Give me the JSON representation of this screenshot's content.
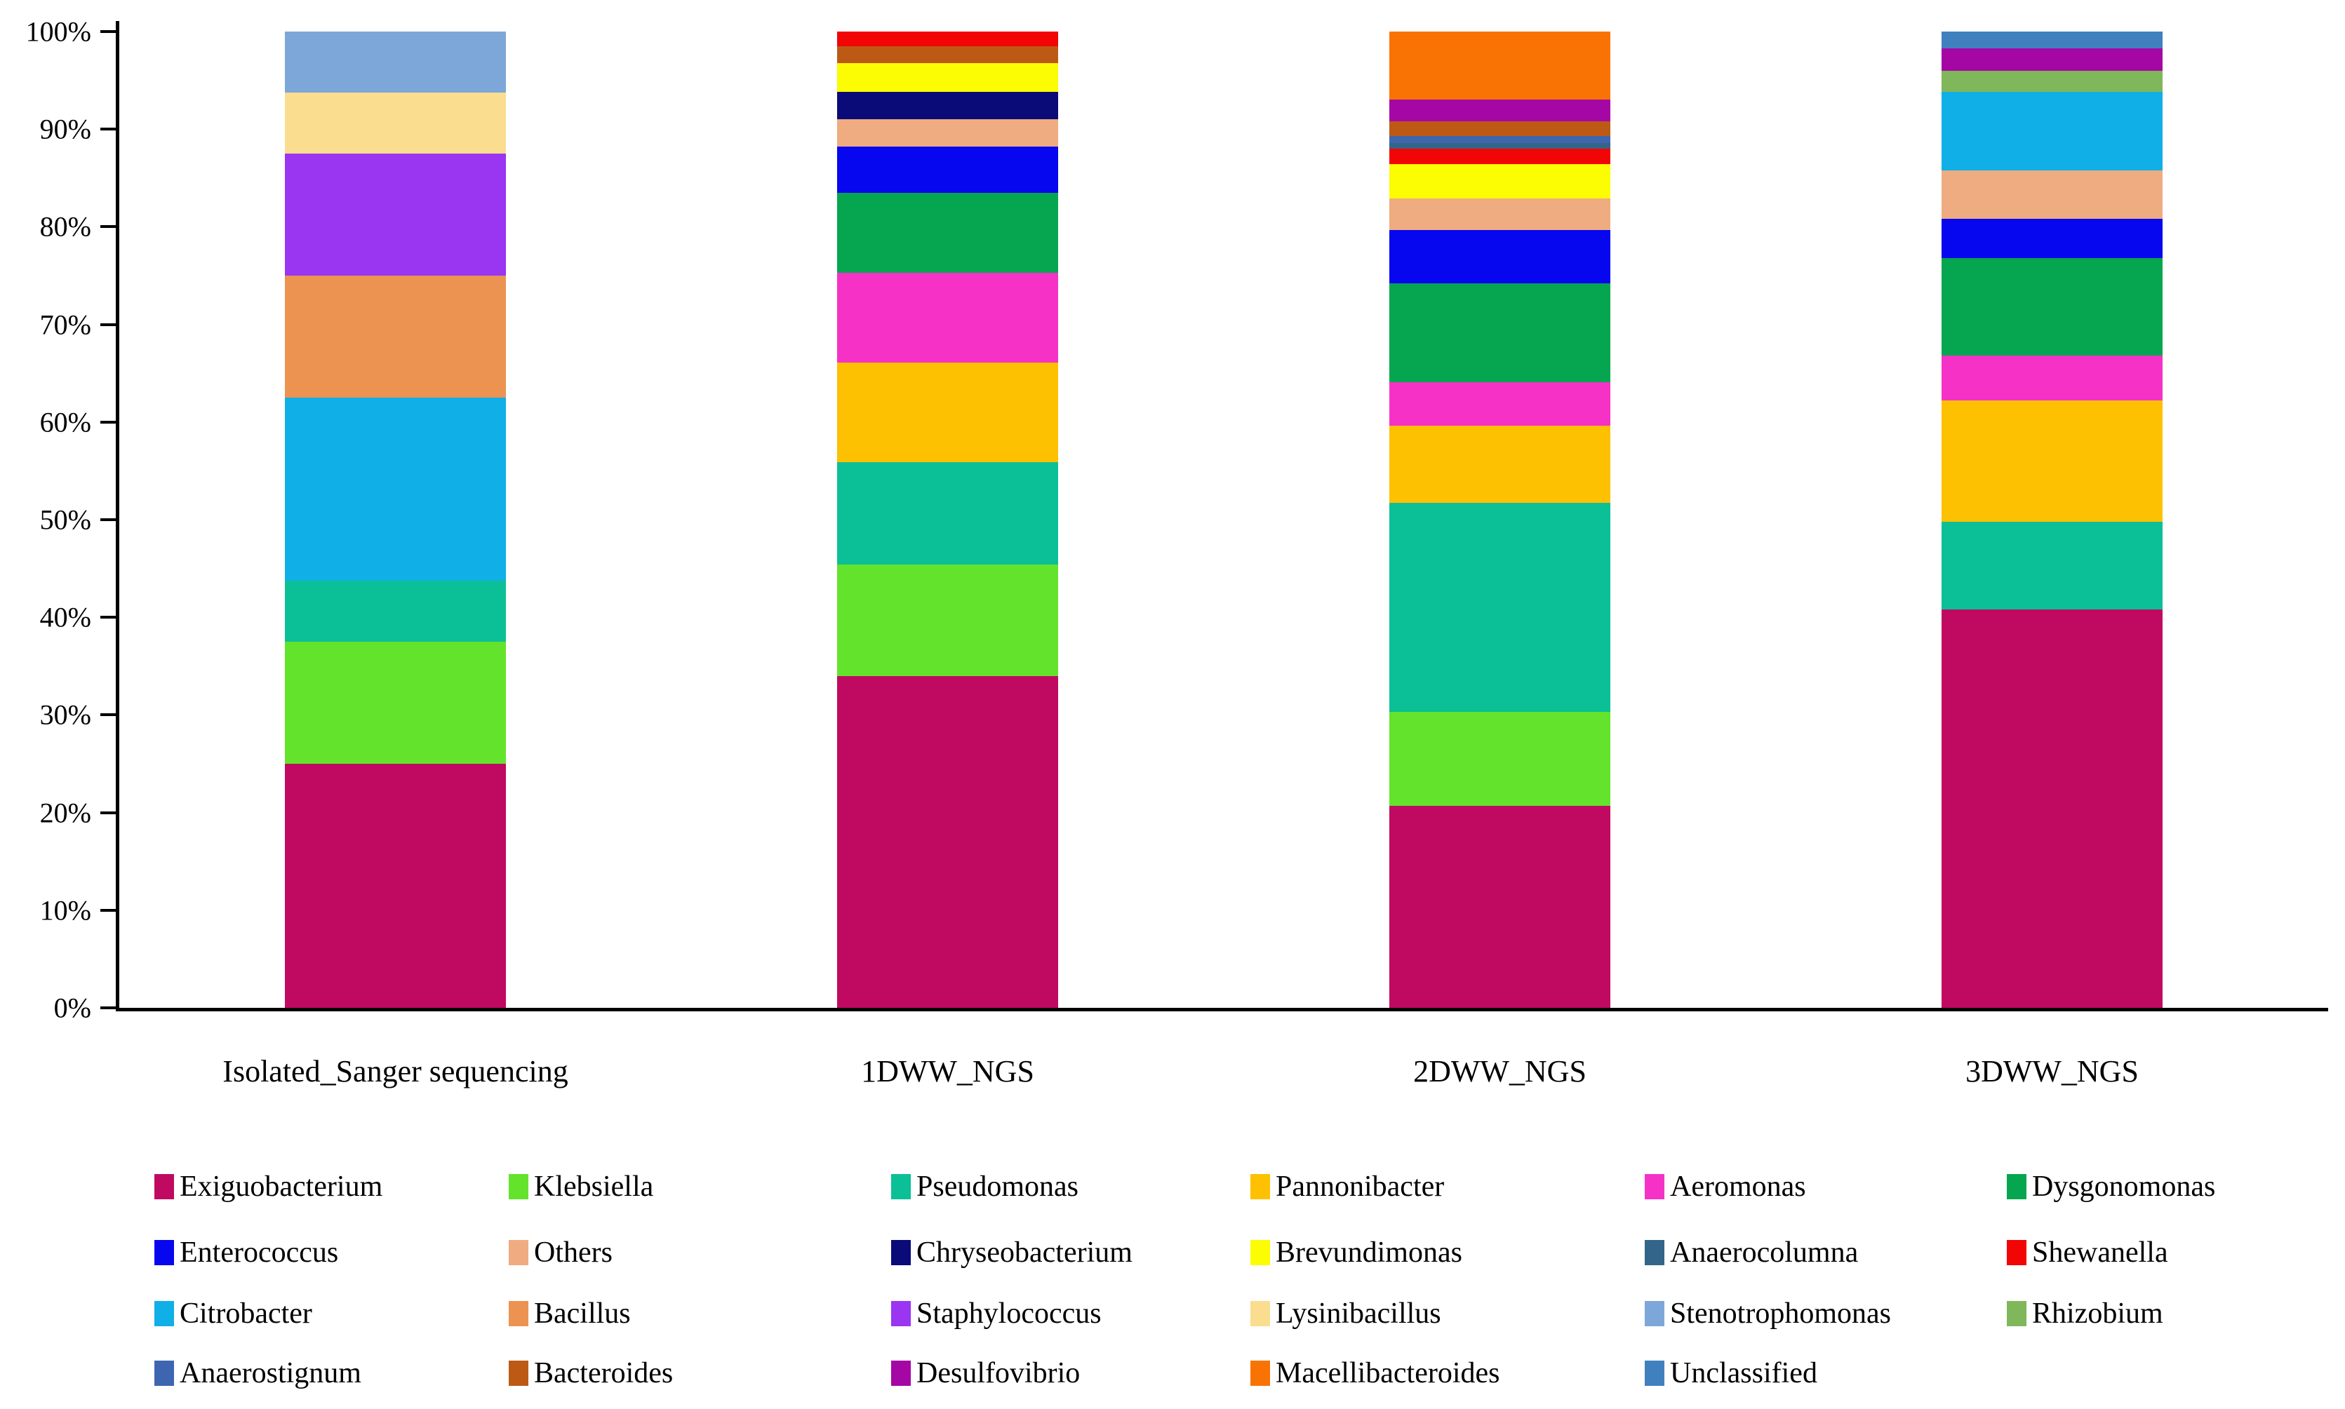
{
  "chart_data": {
    "type": "bar",
    "stacked": true,
    "units": "percent",
    "title": "",
    "xlabel": "",
    "ylabel": "",
    "ylim": [
      0,
      100
    ],
    "grid": false,
    "legend_position": "bottom",
    "categories": [
      "Isolated_Sanger sequencing",
      "1DWW_NGS",
      "2DWW_NGS",
      "3DWW_NGS"
    ],
    "y_ticks": [
      "0%",
      "10%",
      "20%",
      "30%",
      "40%",
      "50%",
      "60%",
      "70%",
      "80%",
      "90%",
      "100%"
    ],
    "series": [
      {
        "name": "Exiguobacterium",
        "color": "#C00A61",
        "values": [
          25.0,
          34.0,
          20.7,
          40.8
        ]
      },
      {
        "name": "Klebsiella",
        "color": "#63E32B",
        "values": [
          12.5,
          11.4,
          9.6,
          0
        ]
      },
      {
        "name": "Pseudomonas",
        "color": "#0BC096",
        "values": [
          6.25,
          10.5,
          21.4,
          9.0
        ]
      },
      {
        "name": "Pannonibacter",
        "color": "#FDC101",
        "values": [
          0,
          10.2,
          7.9,
          12.4
        ]
      },
      {
        "name": "Aeromonas",
        "color": "#F532C5",
        "values": [
          0,
          9.2,
          4.5,
          4.6
        ]
      },
      {
        "name": "Dysgonomonas",
        "color": "#06A550",
        "values": [
          0,
          8.2,
          10.1,
          10.0
        ]
      },
      {
        "name": "Enterococcus",
        "color": "#0606EF",
        "values": [
          0,
          4.7,
          5.5,
          4.0
        ]
      },
      {
        "name": "Others",
        "color": "#EFAC80",
        "values": [
          0,
          2.8,
          3.2,
          5.0
        ]
      },
      {
        "name": "Chryseobacterium",
        "color": "#0A0A78",
        "values": [
          0,
          2.8,
          0,
          0
        ]
      },
      {
        "name": "Brevundimonas",
        "color": "#FCFC02",
        "values": [
          0,
          3.0,
          3.5,
          0
        ]
      },
      {
        "name": "Anaerocolumna",
        "color": "#33658A",
        "values": [
          0,
          0,
          0.6,
          0
        ]
      },
      {
        "name": "Shewanella",
        "color": "#F20505",
        "values": [
          0,
          1.5,
          1.6,
          0
        ]
      },
      {
        "name": "Citrobacter",
        "color": "#10AFE8",
        "values": [
          18.75,
          0,
          0,
          8.0
        ]
      },
      {
        "name": "Bacillus",
        "color": "#EC9352",
        "values": [
          12.5,
          0,
          0,
          0
        ]
      },
      {
        "name": "Staphylococcus",
        "color": "#9A35F2",
        "values": [
          12.5,
          0,
          0,
          0
        ]
      },
      {
        "name": "Lysinibacillus",
        "color": "#FADD8F",
        "values": [
          6.25,
          0,
          0,
          0
        ]
      },
      {
        "name": "Stenotrophomonas",
        "color": "#7DA7D9",
        "values": [
          6.25,
          0,
          0,
          0
        ]
      },
      {
        "name": "Rhizobium",
        "color": "#7FB75A",
        "values": [
          0,
          0,
          0,
          2.2
        ]
      },
      {
        "name": "Anaerostignum",
        "color": "#3E66B0",
        "values": [
          0,
          0,
          0.7,
          0
        ]
      },
      {
        "name": "Bacteroides",
        "color": "#BC5A15",
        "values": [
          0,
          1.7,
          1.5,
          0
        ]
      },
      {
        "name": "Desulfovibrio",
        "color": "#A507A5",
        "values": [
          0,
          0,
          2.2,
          2.3
        ]
      },
      {
        "name": "Macellibacteroides",
        "color": "#F87304",
        "values": [
          0,
          0,
          7.0,
          0
        ]
      },
      {
        "name": "Unclassified",
        "color": "#4080BE",
        "values": [
          0,
          0,
          0,
          1.7
        ]
      }
    ],
    "bars": [
      {
        "category": "Isolated_Sanger sequencing",
        "segments_bottom_to_top": [
          {
            "name": "Exiguobacterium",
            "value": 25.0
          },
          {
            "name": "Klebsiella",
            "value": 12.5
          },
          {
            "name": "Pseudomonas",
            "value": 6.25
          },
          {
            "name": "Citrobacter",
            "value": 18.75
          },
          {
            "name": "Bacillus",
            "value": 12.5
          },
          {
            "name": "Staphylococcus",
            "value": 12.5
          },
          {
            "name": "Lysinibacillus",
            "value": 6.25
          },
          {
            "name": "Stenotrophomonas",
            "value": 6.25
          }
        ]
      },
      {
        "category": "1DWW_NGS",
        "segments_bottom_to_top": [
          {
            "name": "Exiguobacterium",
            "value": 34.0
          },
          {
            "name": "Klebsiella",
            "value": 11.4
          },
          {
            "name": "Pseudomonas",
            "value": 10.5
          },
          {
            "name": "Pannonibacter",
            "value": 10.2
          },
          {
            "name": "Aeromonas",
            "value": 9.2
          },
          {
            "name": "Dysgonomonas",
            "value": 8.2
          },
          {
            "name": "Enterococcus",
            "value": 4.7
          },
          {
            "name": "Others",
            "value": 2.8
          },
          {
            "name": "Chryseobacterium",
            "value": 2.8
          },
          {
            "name": "Brevundimonas",
            "value": 3.0
          },
          {
            "name": "Bacteroides",
            "value": 1.7
          },
          {
            "name": "Shewanella",
            "value": 1.5
          }
        ]
      },
      {
        "category": "2DWW_NGS",
        "segments_bottom_to_top": [
          {
            "name": "Exiguobacterium",
            "value": 20.7
          },
          {
            "name": "Klebsiella",
            "value": 9.6
          },
          {
            "name": "Pseudomonas",
            "value": 21.4
          },
          {
            "name": "Pannonibacter",
            "value": 7.9
          },
          {
            "name": "Aeromonas",
            "value": 4.5
          },
          {
            "name": "Dysgonomonas",
            "value": 10.1
          },
          {
            "name": "Enterococcus",
            "value": 5.5
          },
          {
            "name": "Others",
            "value": 3.2
          },
          {
            "name": "Brevundimonas",
            "value": 3.5
          },
          {
            "name": "Shewanella",
            "value": 1.6
          },
          {
            "name": "Anaerocolumna",
            "value": 0.6
          },
          {
            "name": "Anaerostignum",
            "value": 0.7
          },
          {
            "name": "Bacteroides",
            "value": 1.5
          },
          {
            "name": "Desulfovibrio",
            "value": 2.2
          },
          {
            "name": "Macellibacteroides",
            "value": 7.0
          }
        ]
      },
      {
        "category": "3DWW_NGS",
        "segments_bottom_to_top": [
          {
            "name": "Exiguobacterium",
            "value": 40.8
          },
          {
            "name": "Pseudomonas",
            "value": 9.0
          },
          {
            "name": "Pannonibacter",
            "value": 12.4
          },
          {
            "name": "Aeromonas",
            "value": 4.6
          },
          {
            "name": "Dysgonomonas",
            "value": 10.0
          },
          {
            "name": "Enterococcus",
            "value": 4.0
          },
          {
            "name": "Others",
            "value": 5.0
          },
          {
            "name": "Citrobacter",
            "value": 8.0
          },
          {
            "name": "Rhizobium",
            "value": 2.2
          },
          {
            "name": "Desulfovibrio",
            "value": 2.3
          },
          {
            "name": "Unclassified",
            "value": 1.7
          }
        ]
      }
    ],
    "legend_rows": [
      [
        "Exiguobacterium",
        "Klebsiella",
        "Pseudomonas",
        "Pannonibacter",
        "Aeromonas",
        "Dysgonomonas"
      ],
      [
        "Enterococcus",
        "Others",
        "Chryseobacterium",
        "Brevundimonas",
        "Anaerocolumna",
        "Shewanella"
      ],
      [
        "Citrobacter",
        "Bacillus",
        "Staphylococcus",
        "Lysinibacillus",
        "Stenotrophomonas",
        "Rhizobium"
      ],
      [
        "Anaerostignum",
        "Bacteroides",
        "Desulfovibrio",
        "Macellibacteroides",
        "Unclassified"
      ]
    ]
  }
}
